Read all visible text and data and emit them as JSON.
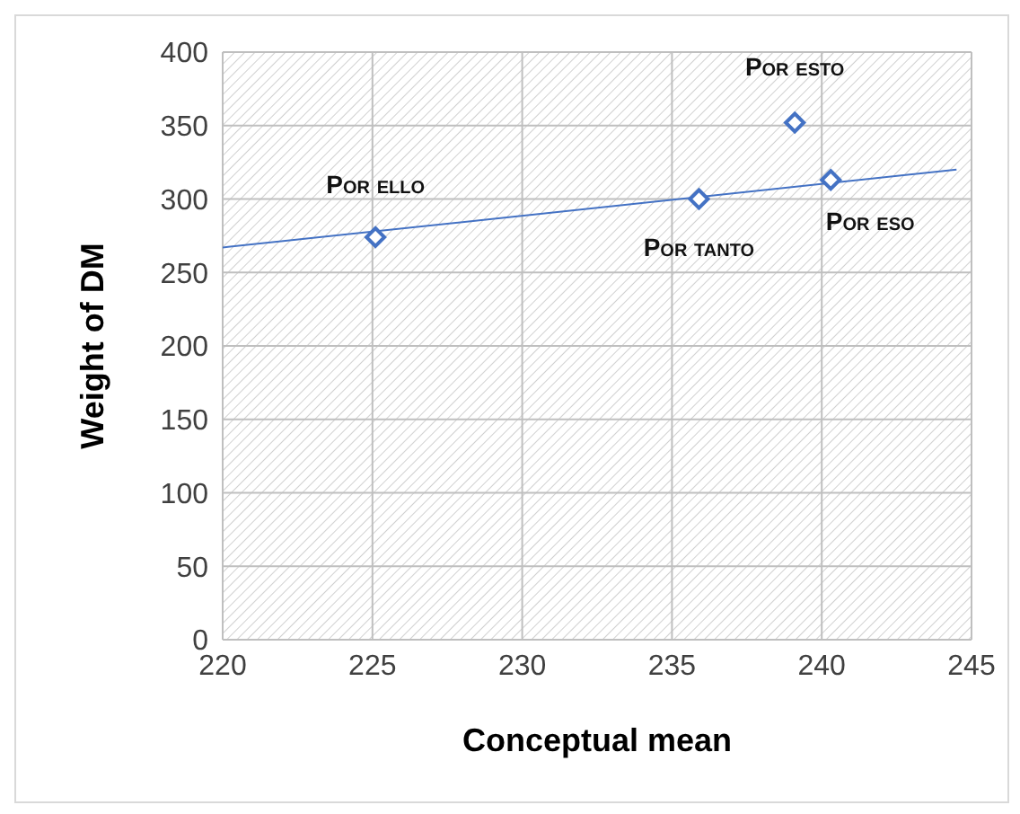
{
  "chart_data": {
    "type": "scatter",
    "xlabel": "Conceptual mean",
    "ylabel": "Weight of DM",
    "xlim": [
      220,
      245
    ],
    "xticks": [
      220,
      225,
      230,
      235,
      240,
      245
    ],
    "ylim": [
      0,
      400
    ],
    "yticks": [
      0,
      50,
      100,
      150,
      200,
      250,
      300,
      350,
      400
    ],
    "grid": true,
    "marker": "diamond",
    "series": [
      {
        "color": "#4472c4",
        "x": [
          225.1,
          235.9,
          239.1,
          240.3
        ],
        "values": [
          274,
          300,
          352,
          313
        ]
      },
      {
        "type": "line",
        "color": "#4472c4",
        "x": [
          220,
          244.5
        ],
        "values": [
          267,
          320
        ],
        "marker": "none"
      }
    ],
    "annotations": [
      {
        "text": "Por ello",
        "x": 225.1,
        "y": 274
      },
      {
        "text": "Por tanto",
        "x": 235.9,
        "y": 300
      },
      {
        "text": "Por esto",
        "x": 239.1,
        "y": 352
      },
      {
        "text": "Por eso",
        "x": 240.3,
        "y": 313
      }
    ]
  }
}
